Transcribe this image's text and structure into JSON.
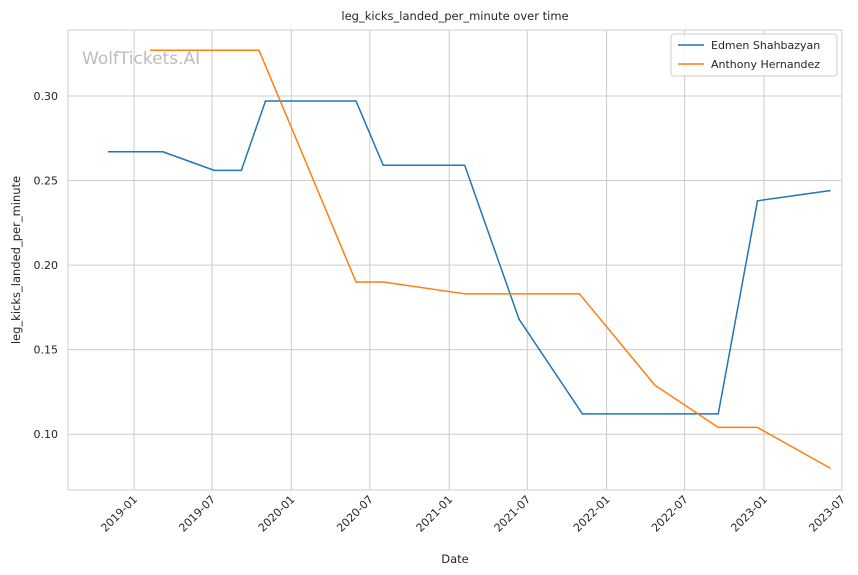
{
  "chart_data": {
    "type": "line",
    "title": "leg_kicks_landed_per_minute over time",
    "xlabel": "Date",
    "ylabel": "leg_kicks_landed_per_minute",
    "watermark": "WolfTickets.AI",
    "grid": true,
    "legend_position": "top-right",
    "xlim": [
      "2018-08-01",
      "2023-07-01"
    ],
    "ylim": [
      0.067,
      0.339
    ],
    "x_ticks": [
      "2019-01",
      "2019-07",
      "2020-01",
      "2020-07",
      "2021-01",
      "2021-07",
      "2022-01",
      "2022-07",
      "2023-01",
      "2023-07"
    ],
    "y_ticks": [
      "0.10",
      "0.15",
      "0.20",
      "0.25",
      "0.30"
    ],
    "y_tick_values": [
      0.1,
      0.15,
      0.2,
      0.25,
      0.3
    ],
    "series": [
      {
        "name": "Edmen Shahbazyan",
        "color": "#1f77b4",
        "points": [
          {
            "x": "2018-11-03",
            "y": 0.267
          },
          {
            "x": "2019-03-09",
            "y": 0.267
          },
          {
            "x": "2019-07-06",
            "y": 0.256
          },
          {
            "x": "2019-09-07",
            "y": 0.256
          },
          {
            "x": "2019-11-02",
            "y": 0.297
          },
          {
            "x": "2020-05-30",
            "y": 0.297
          },
          {
            "x": "2020-08-01",
            "y": 0.259
          },
          {
            "x": "2021-02-06",
            "y": 0.259
          },
          {
            "x": "2021-06-12",
            "y": 0.168
          },
          {
            "x": "2021-11-06",
            "y": 0.112
          },
          {
            "x": "2022-09-17",
            "y": 0.112
          },
          {
            "x": "2022-12-17",
            "y": 0.238
          },
          {
            "x": "2023-06-03",
            "y": 0.244
          }
        ]
      },
      {
        "name": "Anthony Hernandez",
        "color": "#ff7f0e",
        "points": [
          {
            "x": "2019-02-09",
            "y": 0.327
          },
          {
            "x": "2019-10-18",
            "y": 0.327
          },
          {
            "x": "2020-05-30",
            "y": 0.19
          },
          {
            "x": "2020-08-01",
            "y": 0.19
          },
          {
            "x": "2021-02-06",
            "y": 0.183
          },
          {
            "x": "2021-10-30",
            "y": 0.183
          },
          {
            "x": "2022-04-23",
            "y": 0.129
          },
          {
            "x": "2022-09-17",
            "y": 0.104
          },
          {
            "x": "2022-12-17",
            "y": 0.104
          },
          {
            "x": "2023-06-03",
            "y": 0.08
          }
        ]
      }
    ]
  }
}
